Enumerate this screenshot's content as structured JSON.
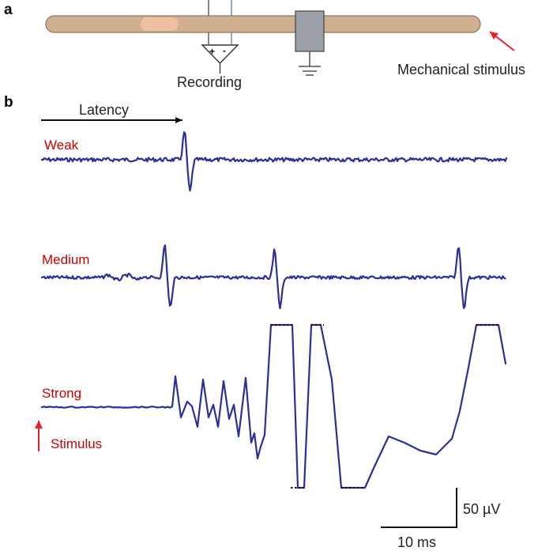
{
  "panel_a": {
    "label": "a",
    "recording_label": "Recording",
    "amp_plus": "+",
    "amp_minus": "-",
    "stimulus_label": "Mechanical stimulus",
    "colors": {
      "nerve": "#d1b090",
      "nerve_edge": "#8a7560",
      "patch": "#efc1a0",
      "box": "#9a9fa8",
      "arrow": "#e8202a"
    }
  },
  "panel_b": {
    "label": "b",
    "latency_label": "Latency",
    "traces": [
      {
        "name": "Weak"
      },
      {
        "name": "Medium"
      },
      {
        "name": "Strong"
      }
    ],
    "stimulus_label": "Stimulus",
    "scale_voltage": "50 µV",
    "scale_time": "10 ms",
    "colors": {
      "trace": "#2b2f9a",
      "label": "#cc0000"
    }
  }
}
